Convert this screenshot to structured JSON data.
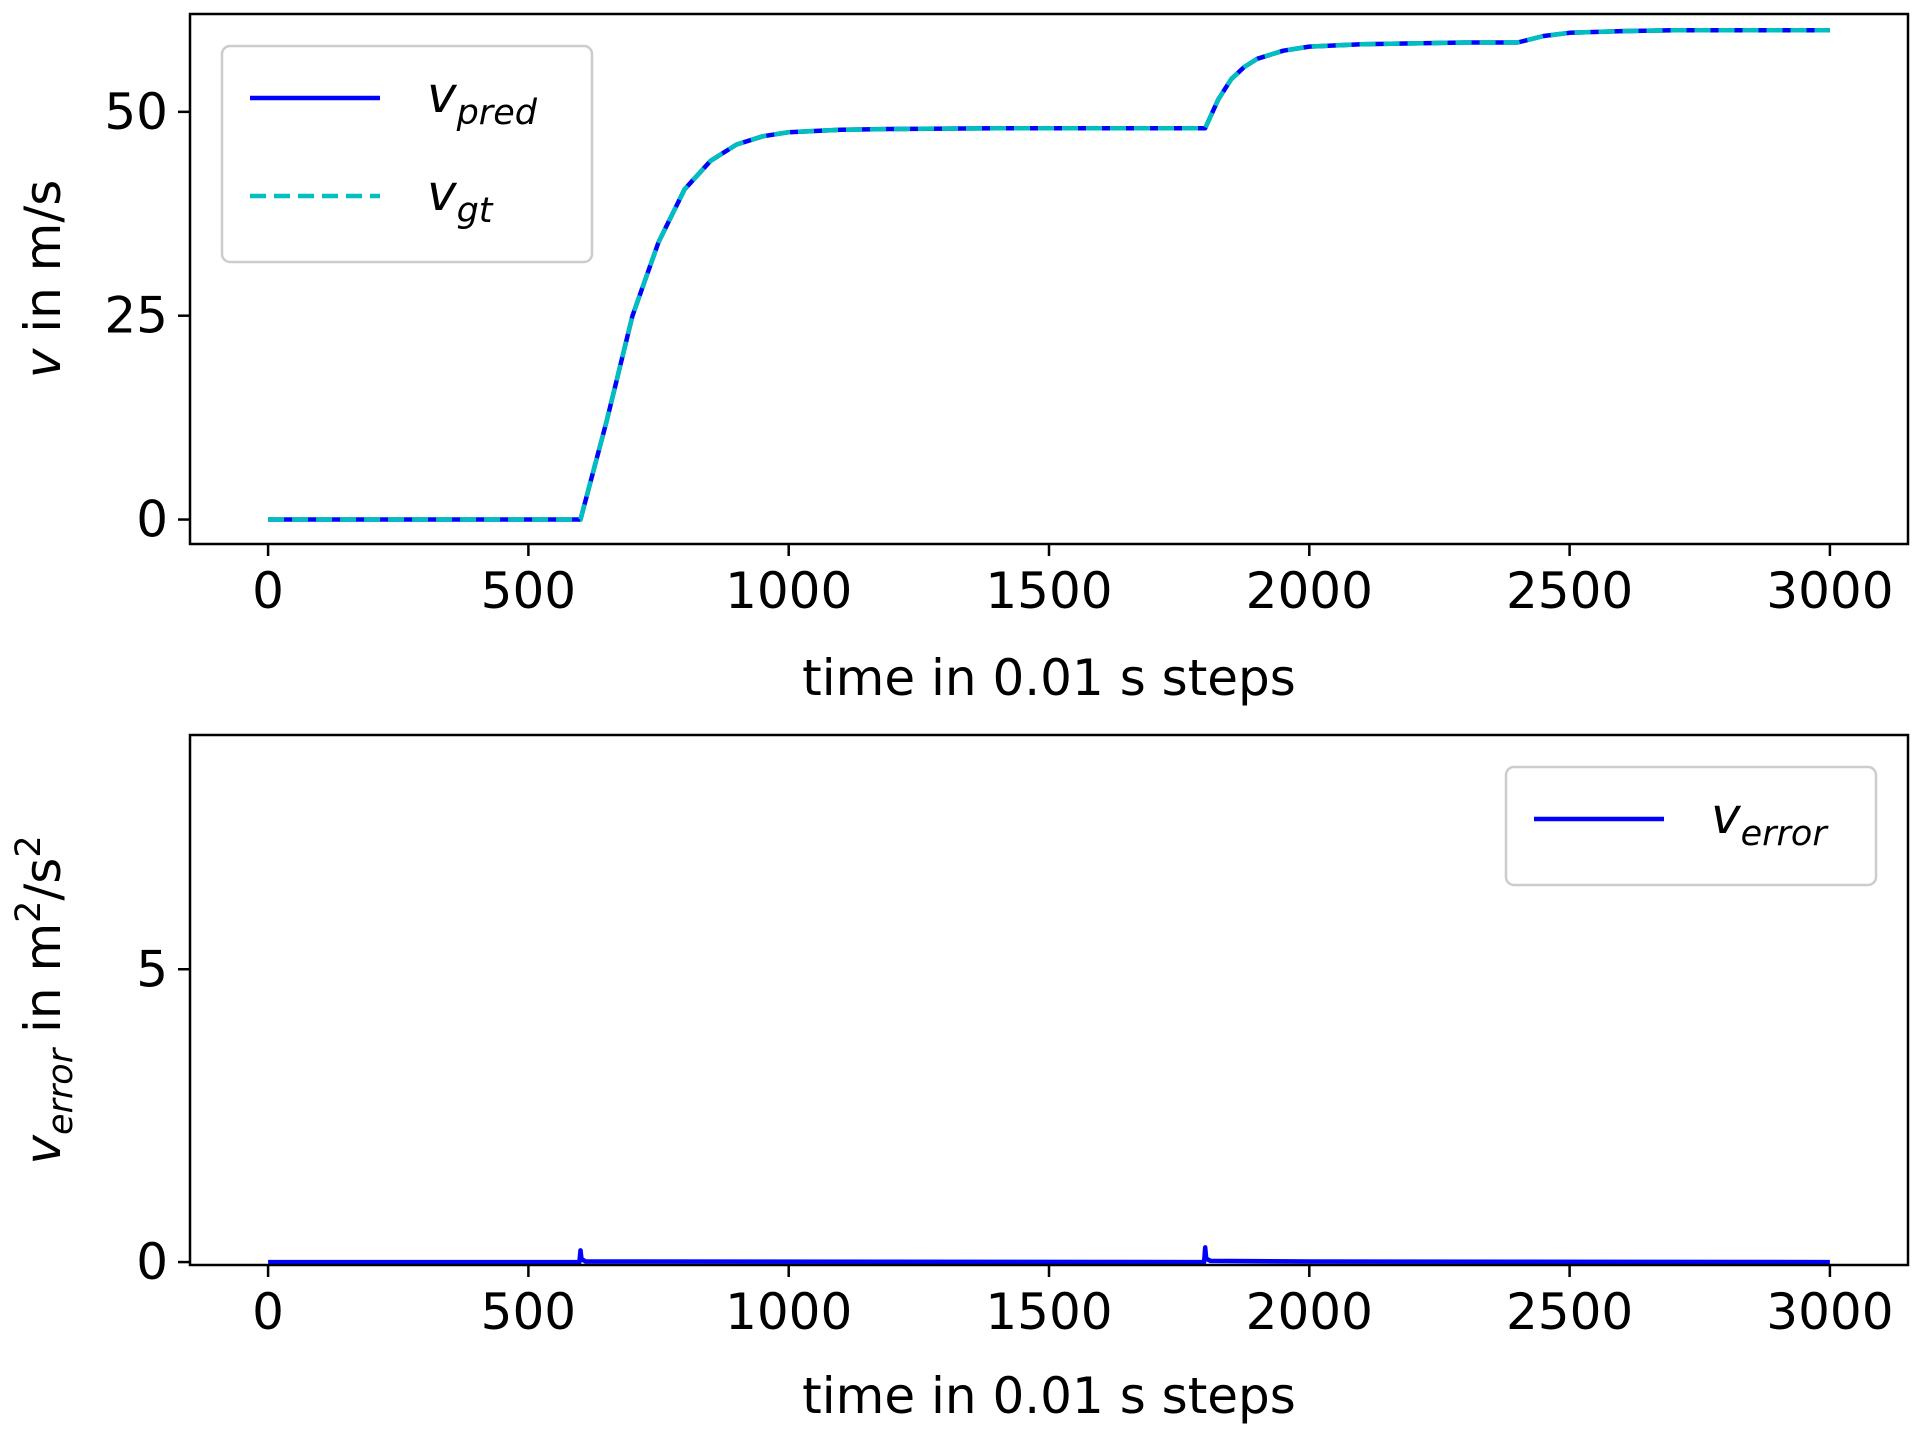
{
  "chart_data": [
    {
      "type": "line",
      "xlabel": "time in 0.01 s steps",
      "ylabel": {
        "var": "v",
        "rest": " in m/s"
      },
      "xlim": [
        -150,
        3150
      ],
      "ylim": [
        -3,
        62
      ],
      "xticks": [
        0,
        500,
        1000,
        1500,
        2000,
        2500,
        3000
      ],
      "yticks": [
        0,
        25,
        50
      ],
      "grid": false,
      "legend_position": "top-left",
      "series": [
        {
          "name": {
            "base": "v",
            "sub": "pred"
          },
          "color": "#0000ff",
          "style": "solid",
          "x": [
            0,
            600,
            650,
            700,
            750,
            800,
            850,
            900,
            950,
            1000,
            1100,
            1200,
            1400,
            1600,
            1800,
            1825,
            1850,
            1875,
            1900,
            1950,
            2000,
            2100,
            2200,
            2300,
            2400,
            2450,
            2500,
            2600,
            2700,
            2800,
            3000
          ],
          "values": [
            0,
            0,
            12,
            25,
            34,
            40.5,
            44,
            46,
            47,
            47.5,
            47.8,
            47.9,
            48,
            48,
            48,
            51.5,
            54,
            55.5,
            56.5,
            57.5,
            58,
            58.3,
            58.4,
            58.5,
            58.5,
            59.3,
            59.7,
            59.9,
            60,
            60,
            60
          ]
        },
        {
          "name": {
            "base": "v",
            "sub": "gt"
          },
          "color": "#00bfbf",
          "style": "dashed",
          "x": [
            0,
            600,
            650,
            700,
            750,
            800,
            850,
            900,
            950,
            1000,
            1100,
            1200,
            1400,
            1600,
            1800,
            1825,
            1850,
            1875,
            1900,
            1950,
            2000,
            2100,
            2200,
            2300,
            2400,
            2450,
            2500,
            2600,
            2700,
            2800,
            3000
          ],
          "values": [
            0,
            0,
            12,
            25,
            34,
            40.5,
            44,
            46,
            47,
            47.5,
            47.8,
            47.9,
            48,
            48,
            48,
            51.5,
            54,
            55.5,
            56.5,
            57.5,
            58,
            58.3,
            58.4,
            58.5,
            58.5,
            59.3,
            59.7,
            59.9,
            60,
            60,
            60
          ]
        }
      ]
    },
    {
      "type": "line",
      "xlabel": "time in 0.01 s steps",
      "ylabel": {
        "var": "v",
        "var_sub": "error",
        "rest": " in m",
        "sup1": "2",
        "mid": "/s",
        "sup2": "2"
      },
      "xlim": [
        -150,
        3150
      ],
      "ylim": [
        -0.05,
        9
      ],
      "xticks": [
        0,
        500,
        1000,
        1500,
        2000,
        2500,
        3000
      ],
      "yticks": [
        0,
        5
      ],
      "grid": false,
      "legend_position": "top-right",
      "series": [
        {
          "name": {
            "base": "v",
            "sub": "error"
          },
          "color": "#0000ff",
          "style": "solid",
          "x": [
            0,
            598,
            600,
            602,
            610,
            1798,
            1800,
            1802,
            1810,
            2000,
            2400,
            3000
          ],
          "values": [
            0,
            0,
            0.2,
            0.05,
            0.01,
            0,
            0.25,
            0.06,
            0.02,
            0.01,
            0.005,
            0
          ]
        }
      ]
    }
  ]
}
